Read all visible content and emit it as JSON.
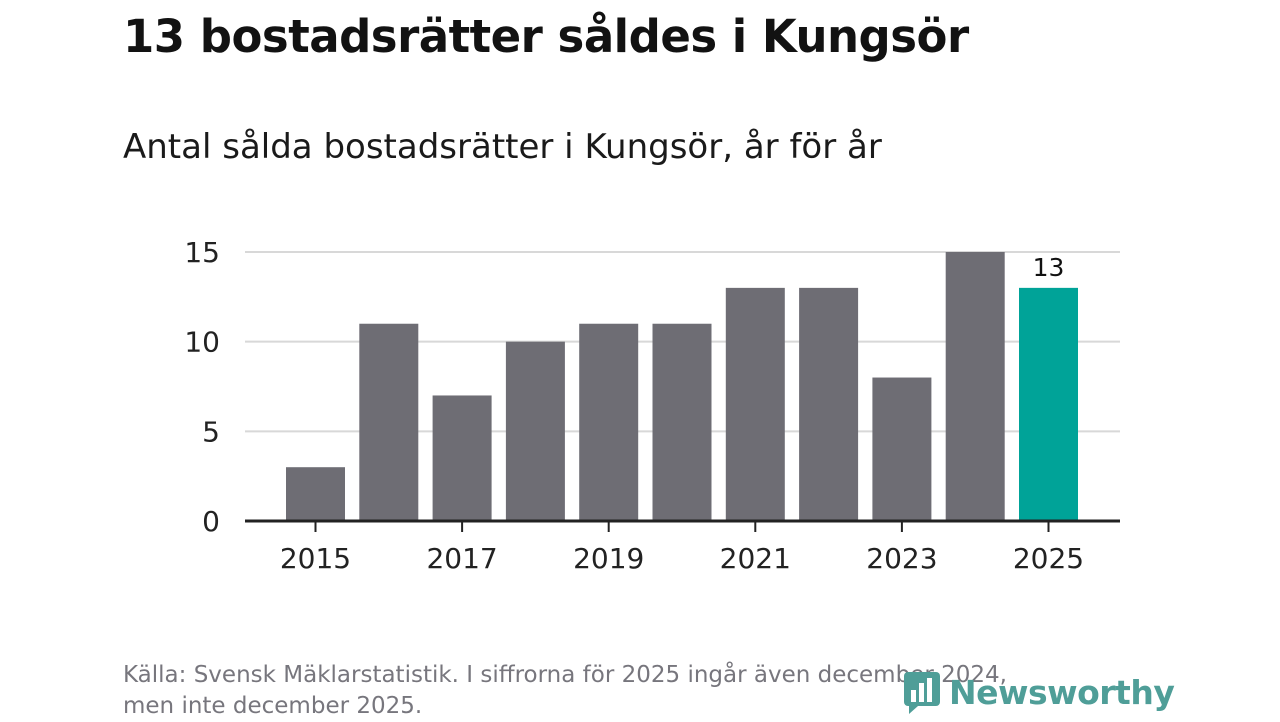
{
  "header": {
    "title": "13 bostadsrätter såldes i Kungsör",
    "subtitle": "Antal sålda bostadsrätter i Kungsör, år för år"
  },
  "footer": {
    "source_line1": "Källa: Svensk Mäklarstatistik. I siffrorna för 2025 ingår även december 2024,",
    "source_line2": "men inte december 2025.",
    "brand": "Newsworthy"
  },
  "colors": {
    "bar": "#6e6d74",
    "highlight": "#00a398",
    "grid": "#d8d8d8",
    "axis": "#222222",
    "brand": "#4f9e98"
  },
  "chart_data": {
    "type": "bar",
    "title": "Antal sålda bostadsrätter i Kungsör, år för år",
    "xlabel": "",
    "ylabel": "",
    "categories": [
      "2015",
      "2016",
      "2017",
      "2018",
      "2019",
      "2020",
      "2021",
      "2022",
      "2023",
      "2024",
      "2025"
    ],
    "values": [
      3,
      11,
      7,
      10,
      11,
      11,
      13,
      13,
      8,
      15,
      13
    ],
    "highlight_index": 10,
    "data_labels": [
      {
        "index": 10,
        "text": "13"
      }
    ],
    "ylim": [
      0,
      15
    ],
    "yticks": [
      "0",
      "5",
      "10",
      "15"
    ],
    "xticks": [
      "2015",
      "2017",
      "2019",
      "2021",
      "2023",
      "2025"
    ],
    "grid": true,
    "legend": "none"
  }
}
